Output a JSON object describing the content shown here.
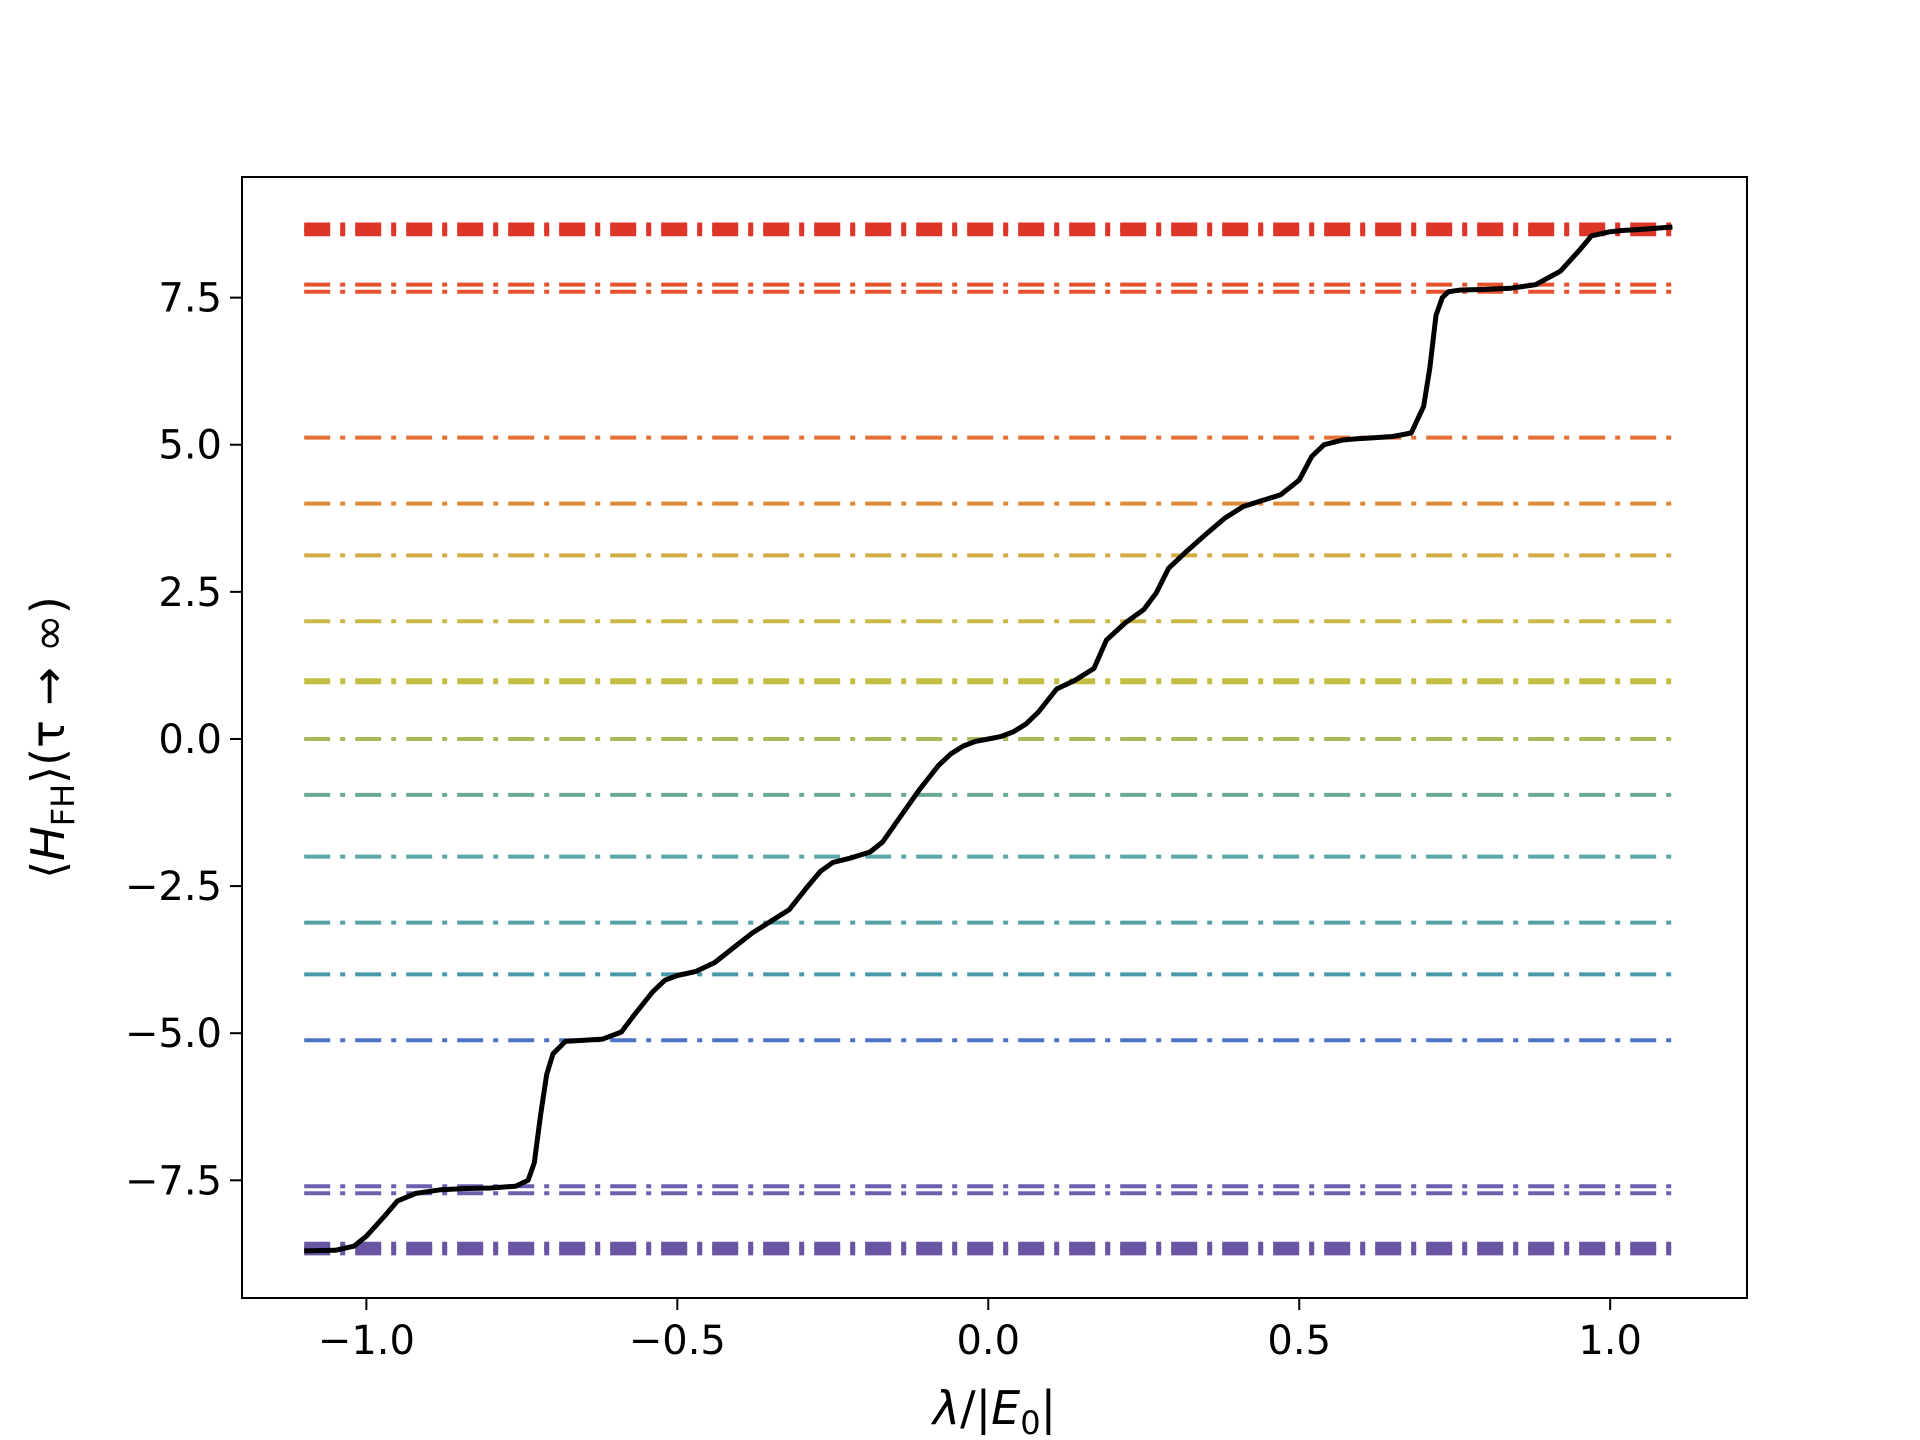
{
  "chart_data": {
    "type": "line",
    "xlabel": "λ/|E₀|",
    "ylabel": "⟨H_FH⟩(τ → ∞)",
    "xlabel_parts": {
      "symbol": "λ",
      "sep": "/|",
      "E": "E",
      "sub": "0",
      "close": "|"
    },
    "ylabel_parts": {
      "open": "⟨",
      "H": "H",
      "sub": "FH",
      "close": "⟩",
      "arg": "(τ → ∞)"
    },
    "xlim": [
      -1.2,
      1.22
    ],
    "ylim": [
      -9.5,
      9.55
    ],
    "xticks": [
      -1.0,
      -0.5,
      0.0,
      0.5,
      1.0
    ],
    "xtick_labels": [
      "−1.0",
      "−0.5",
      "0.0",
      "0.5",
      "1.0"
    ],
    "yticks": [
      -7.5,
      -5.0,
      -2.5,
      0.0,
      2.5,
      5.0,
      7.5
    ],
    "ytick_labels": [
      "−7.5",
      "−5.0",
      "−2.5",
      "0.0",
      "2.5",
      "5.0",
      "7.5"
    ],
    "grid": false,
    "legend": "none",
    "reference_levels": {
      "style": "dash-dot",
      "x_range": [
        -1.1,
        1.1
      ],
      "levels": [
        {
          "y": -8.7,
          "color": "#6a55a3",
          "weight": 3
        },
        {
          "y": -8.62,
          "color": "#6a55a3",
          "weight": 3
        },
        {
          "y": -7.72,
          "color": "#6a60b0",
          "weight": 1
        },
        {
          "y": -7.6,
          "color": "#6a60b0",
          "weight": 1
        },
        {
          "y": -5.12,
          "color": "#4d73c4",
          "weight": 1
        },
        {
          "y": -4.0,
          "color": "#4a98ab",
          "weight": 1
        },
        {
          "y": -3.12,
          "color": "#54a1a8",
          "weight": 1
        },
        {
          "y": -2.0,
          "color": "#5ba6a6",
          "weight": 1
        },
        {
          "y": -0.95,
          "color": "#6aa995",
          "weight": 1
        },
        {
          "y": 0.0,
          "color": "#a9b957",
          "weight": 1
        },
        {
          "y": 0.98,
          "color": "#c4bd44",
          "weight": 2
        },
        {
          "y": 2.0,
          "color": "#cbb847",
          "weight": 1
        },
        {
          "y": 3.12,
          "color": "#d2ac43",
          "weight": 1
        },
        {
          "y": 4.0,
          "color": "#de8a3a",
          "weight": 1
        },
        {
          "y": 5.12,
          "color": "#e46f33",
          "weight": 1
        },
        {
          "y": 7.6,
          "color": "#e5532e",
          "weight": 1
        },
        {
          "y": 7.72,
          "color": "#e5532e",
          "weight": 1
        },
        {
          "y": 8.62,
          "color": "#dd3527",
          "weight": 3
        },
        {
          "y": 8.7,
          "color": "#dd3527",
          "weight": 3
        }
      ]
    },
    "series": [
      {
        "color": "#000000",
        "x": [
          -1.1,
          -1.05,
          -1.02,
          -1.0,
          -0.97,
          -0.95,
          -0.92,
          -0.88,
          -0.84,
          -0.8,
          -0.76,
          -0.74,
          -0.73,
          -0.72,
          -0.71,
          -0.7,
          -0.68,
          -0.65,
          -0.62,
          -0.59,
          -0.57,
          -0.54,
          -0.52,
          -0.5,
          -0.47,
          -0.44,
          -0.41,
          -0.38,
          -0.35,
          -0.32,
          -0.29,
          -0.27,
          -0.25,
          -0.22,
          -0.19,
          -0.17,
          -0.14,
          -0.11,
          -0.08,
          -0.06,
          -0.04,
          -0.02,
          0.0,
          0.02,
          0.04,
          0.06,
          0.08,
          0.11,
          0.14,
          0.17,
          0.19,
          0.22,
          0.25,
          0.27,
          0.29,
          0.32,
          0.35,
          0.38,
          0.41,
          0.44,
          0.47,
          0.5,
          0.52,
          0.54,
          0.57,
          0.59,
          0.62,
          0.65,
          0.68,
          0.7,
          0.71,
          0.72,
          0.73,
          0.74,
          0.76,
          0.8,
          0.84,
          0.88,
          0.92,
          0.95,
          0.97,
          1.0,
          1.02,
          1.05,
          1.1
        ],
        "y": [
          -8.7,
          -8.69,
          -8.62,
          -8.45,
          -8.1,
          -7.85,
          -7.72,
          -7.66,
          -7.64,
          -7.63,
          -7.6,
          -7.5,
          -7.2,
          -6.4,
          -5.7,
          -5.35,
          -5.14,
          -5.12,
          -5.1,
          -4.98,
          -4.7,
          -4.3,
          -4.1,
          -4.02,
          -3.95,
          -3.8,
          -3.55,
          -3.3,
          -3.1,
          -2.9,
          -2.5,
          -2.25,
          -2.1,
          -2.02,
          -1.92,
          -1.75,
          -1.3,
          -0.85,
          -0.45,
          -0.25,
          -0.12,
          -0.04,
          0.0,
          0.04,
          0.12,
          0.25,
          0.45,
          0.85,
          1.0,
          1.2,
          1.68,
          1.97,
          2.2,
          2.48,
          2.9,
          3.2,
          3.48,
          3.75,
          3.95,
          4.05,
          4.15,
          4.4,
          4.8,
          5.0,
          5.08,
          5.1,
          5.12,
          5.14,
          5.2,
          5.65,
          6.3,
          7.2,
          7.5,
          7.6,
          7.63,
          7.64,
          7.66,
          7.72,
          7.95,
          8.3,
          8.55,
          8.62,
          8.64,
          8.66,
          8.7
        ]
      }
    ]
  }
}
